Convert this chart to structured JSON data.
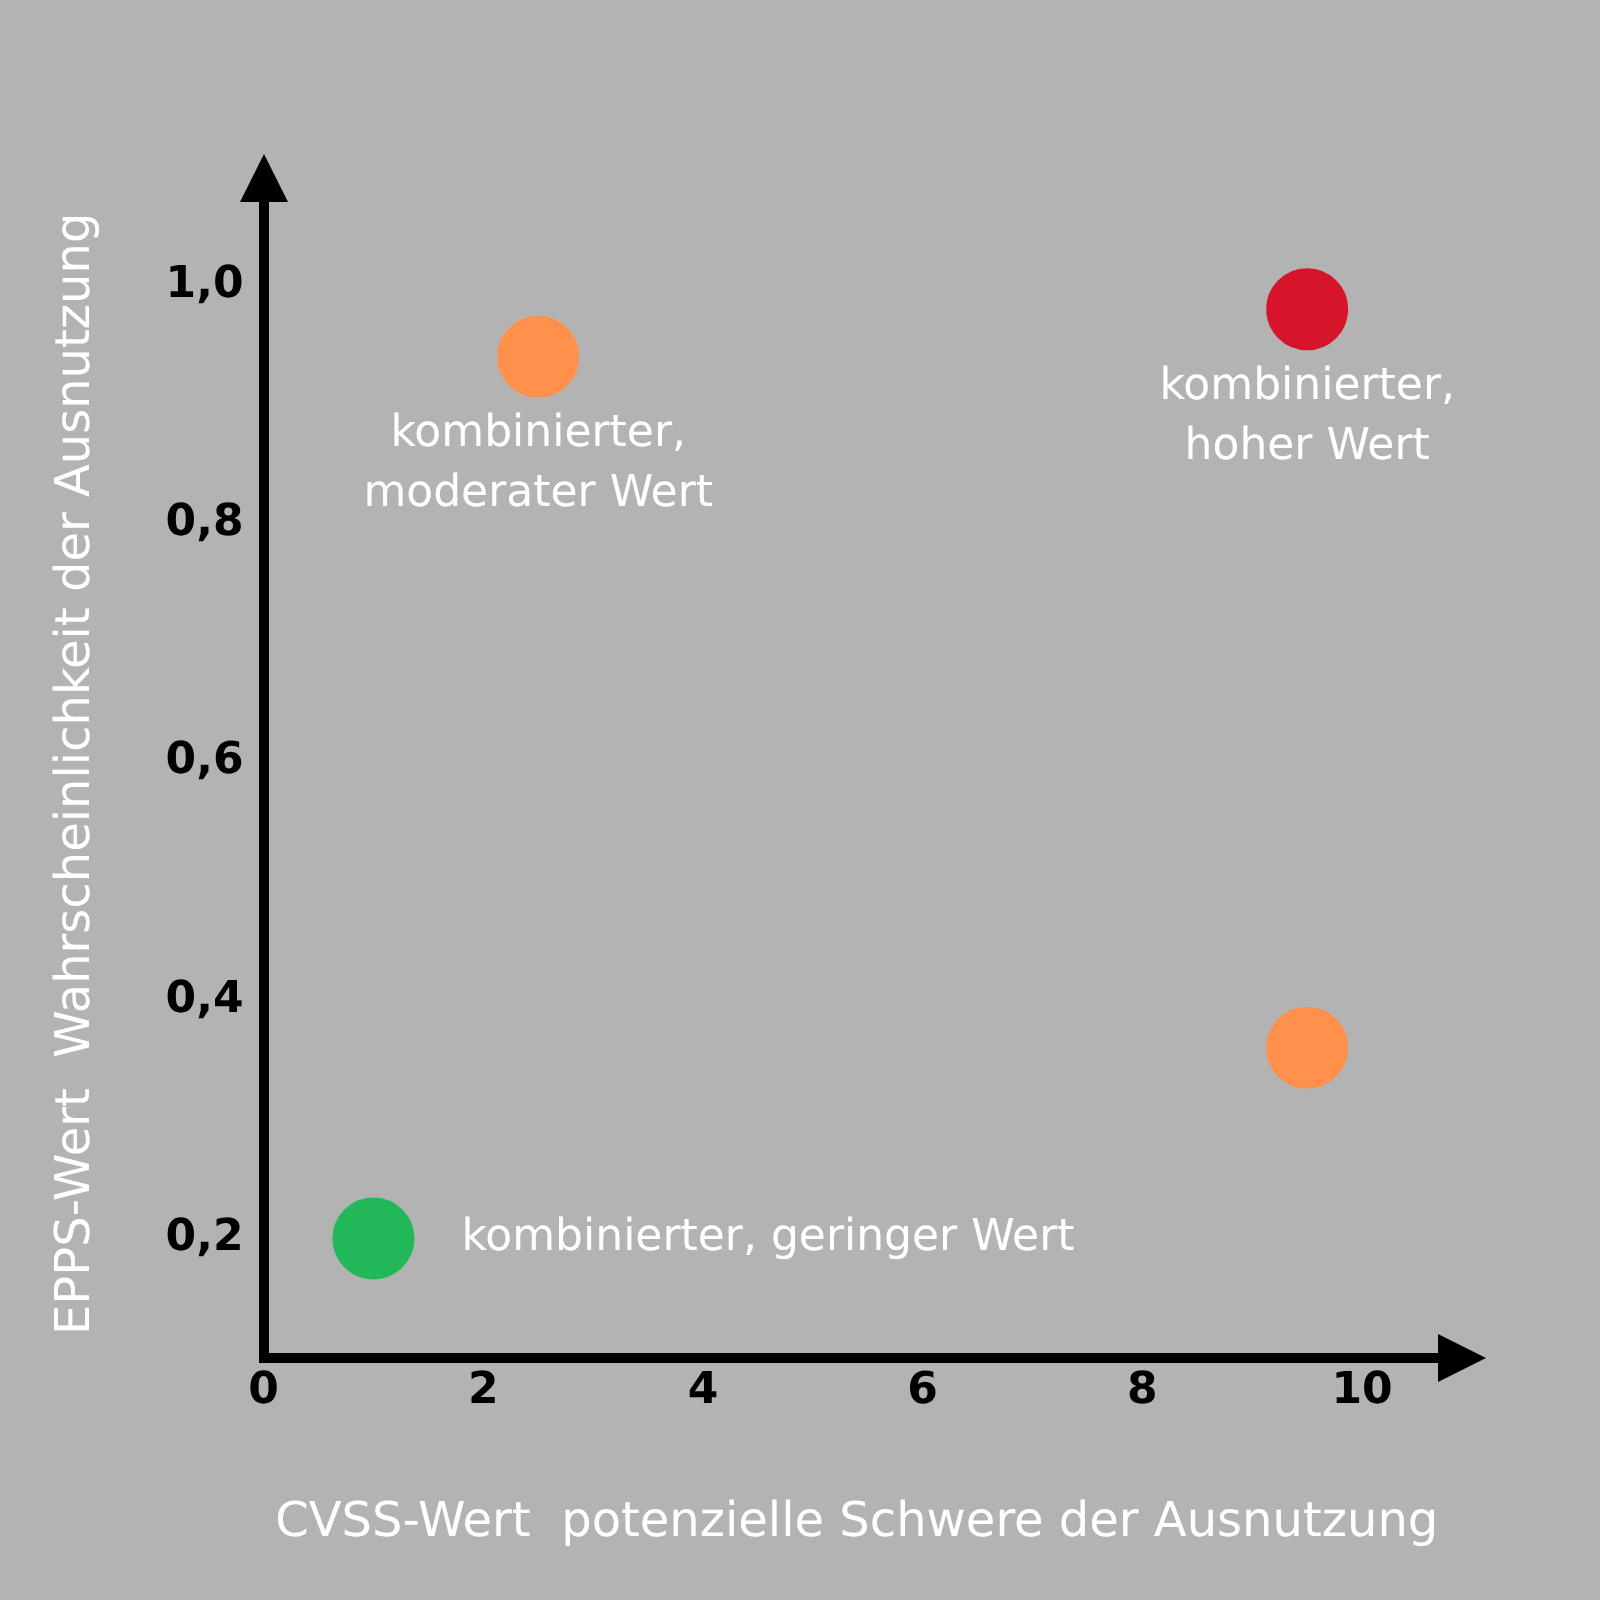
{
  "chart_data": {
    "type": "scatter",
    "xlabel": "CVSS-Wert  potenzielle Schwere der Ausnutzung",
    "ylabel": "EPPS-Wert  Wahrscheinlichkeit der Ausnutzung",
    "x": [
      1,
      2.5,
      9.5,
      9.5
    ],
    "values": [
      0.2,
      0.94,
      0.98,
      0.36
    ],
    "colors": [
      "#22b858",
      "#ff914d",
      "#d6152a",
      "#ff914d"
    ],
    "xlim": [
      0,
      10.8
    ],
    "xticks": [
      0,
      2,
      4,
      6,
      8,
      10
    ],
    "ylim": [
      0.1,
      1.08
    ],
    "yticks": [
      {
        "value": 0.2,
        "label": "0,2"
      },
      {
        "value": 0.4,
        "label": "0,4"
      },
      {
        "value": 0.6,
        "label": "0,6"
      },
      {
        "value": 0.8,
        "label": "0,8"
      },
      {
        "value": 1.0,
        "label": "1,0"
      }
    ],
    "annotations": [
      {
        "text": "kombinierter, geringer Wert",
        "x": 1,
        "y": 0.2
      },
      {
        "text": "kombinierter, moderater Wert",
        "x": 2.5,
        "y": 0.94
      },
      {
        "text": "kombinierter, hoher Wert",
        "x": 9.5,
        "y": 0.98
      }
    ],
    "grid": false,
    "legend": false,
    "marker": "circle"
  }
}
